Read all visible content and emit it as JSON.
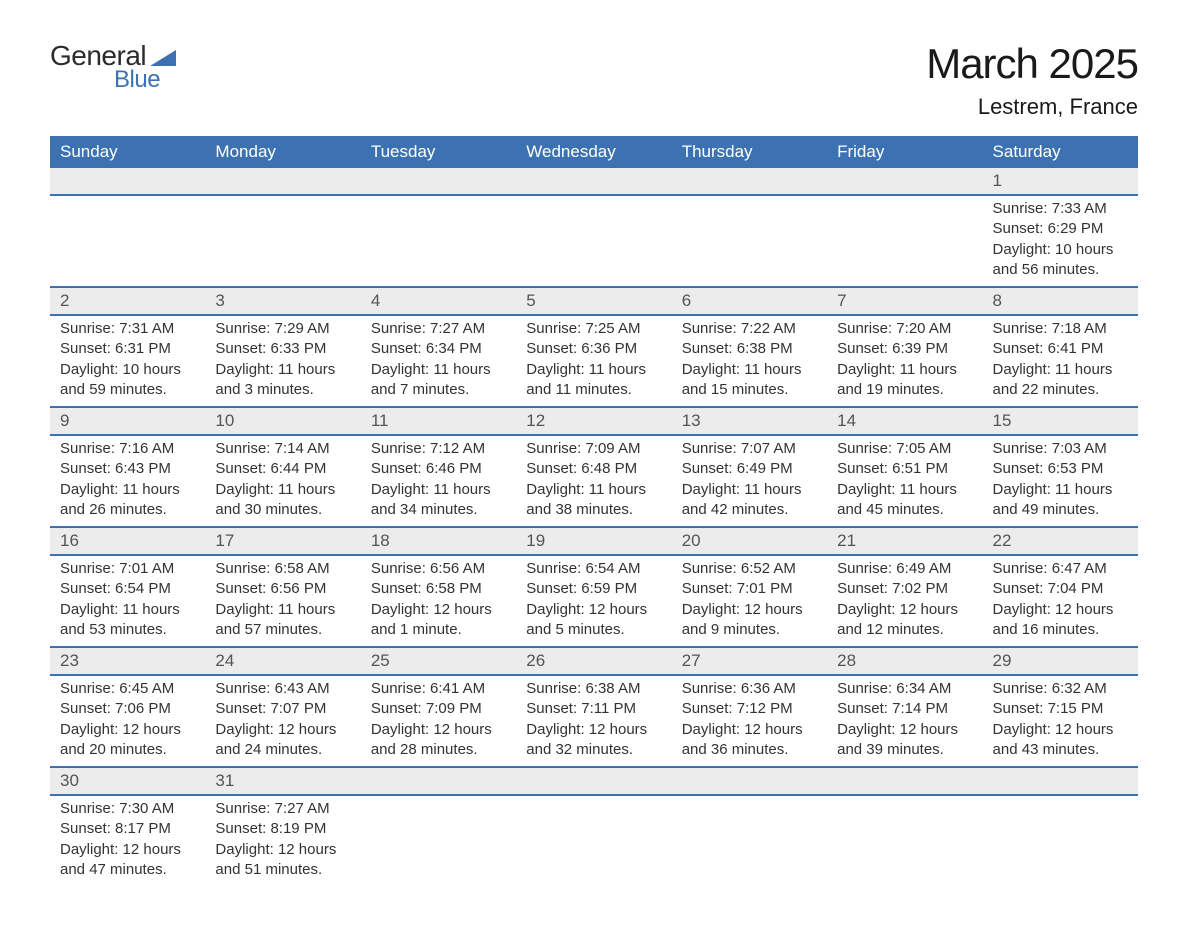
{
  "logo": {
    "general": "General",
    "blue": "Blue"
  },
  "title": {
    "month": "March 2025",
    "location": "Lestrem, France"
  },
  "columns": [
    "Sunday",
    "Monday",
    "Tuesday",
    "Wednesday",
    "Thursday",
    "Friday",
    "Saturday"
  ],
  "colors": {
    "header_bg": "#3c72b1",
    "header_text": "#ffffff",
    "daynum_bg": "#ececec",
    "row_border": "#3c72b1",
    "body_text": "#333333",
    "title_text": "#1a1a1a",
    "logo_blue": "#3c72b1",
    "logo_dark": "#2b2b2b",
    "page_bg": "#ffffff"
  },
  "typography": {
    "title_month_fontsize": 42,
    "title_location_fontsize": 22,
    "header_fontsize": 17,
    "daynum_fontsize": 17,
    "cell_fontsize": 15,
    "font_family": "Arial"
  },
  "weeks": [
    [
      null,
      null,
      null,
      null,
      null,
      null,
      {
        "num": "1",
        "sunrise": "Sunrise: 7:33 AM",
        "sunset": "Sunset: 6:29 PM",
        "daylight": "Daylight: 10 hours and 56 minutes."
      }
    ],
    [
      {
        "num": "2",
        "sunrise": "Sunrise: 7:31 AM",
        "sunset": "Sunset: 6:31 PM",
        "daylight": "Daylight: 10 hours and 59 minutes."
      },
      {
        "num": "3",
        "sunrise": "Sunrise: 7:29 AM",
        "sunset": "Sunset: 6:33 PM",
        "daylight": "Daylight: 11 hours and 3 minutes."
      },
      {
        "num": "4",
        "sunrise": "Sunrise: 7:27 AM",
        "sunset": "Sunset: 6:34 PM",
        "daylight": "Daylight: 11 hours and 7 minutes."
      },
      {
        "num": "5",
        "sunrise": "Sunrise: 7:25 AM",
        "sunset": "Sunset: 6:36 PM",
        "daylight": "Daylight: 11 hours and 11 minutes."
      },
      {
        "num": "6",
        "sunrise": "Sunrise: 7:22 AM",
        "sunset": "Sunset: 6:38 PM",
        "daylight": "Daylight: 11 hours and 15 minutes."
      },
      {
        "num": "7",
        "sunrise": "Sunrise: 7:20 AM",
        "sunset": "Sunset: 6:39 PM",
        "daylight": "Daylight: 11 hours and 19 minutes."
      },
      {
        "num": "8",
        "sunrise": "Sunrise: 7:18 AM",
        "sunset": "Sunset: 6:41 PM",
        "daylight": "Daylight: 11 hours and 22 minutes."
      }
    ],
    [
      {
        "num": "9",
        "sunrise": "Sunrise: 7:16 AM",
        "sunset": "Sunset: 6:43 PM",
        "daylight": "Daylight: 11 hours and 26 minutes."
      },
      {
        "num": "10",
        "sunrise": "Sunrise: 7:14 AM",
        "sunset": "Sunset: 6:44 PM",
        "daylight": "Daylight: 11 hours and 30 minutes."
      },
      {
        "num": "11",
        "sunrise": "Sunrise: 7:12 AM",
        "sunset": "Sunset: 6:46 PM",
        "daylight": "Daylight: 11 hours and 34 minutes."
      },
      {
        "num": "12",
        "sunrise": "Sunrise: 7:09 AM",
        "sunset": "Sunset: 6:48 PM",
        "daylight": "Daylight: 11 hours and 38 minutes."
      },
      {
        "num": "13",
        "sunrise": "Sunrise: 7:07 AM",
        "sunset": "Sunset: 6:49 PM",
        "daylight": "Daylight: 11 hours and 42 minutes."
      },
      {
        "num": "14",
        "sunrise": "Sunrise: 7:05 AM",
        "sunset": "Sunset: 6:51 PM",
        "daylight": "Daylight: 11 hours and 45 minutes."
      },
      {
        "num": "15",
        "sunrise": "Sunrise: 7:03 AM",
        "sunset": "Sunset: 6:53 PM",
        "daylight": "Daylight: 11 hours and 49 minutes."
      }
    ],
    [
      {
        "num": "16",
        "sunrise": "Sunrise: 7:01 AM",
        "sunset": "Sunset: 6:54 PM",
        "daylight": "Daylight: 11 hours and 53 minutes."
      },
      {
        "num": "17",
        "sunrise": "Sunrise: 6:58 AM",
        "sunset": "Sunset: 6:56 PM",
        "daylight": "Daylight: 11 hours and 57 minutes."
      },
      {
        "num": "18",
        "sunrise": "Sunrise: 6:56 AM",
        "sunset": "Sunset: 6:58 PM",
        "daylight": "Daylight: 12 hours and 1 minute."
      },
      {
        "num": "19",
        "sunrise": "Sunrise: 6:54 AM",
        "sunset": "Sunset: 6:59 PM",
        "daylight": "Daylight: 12 hours and 5 minutes."
      },
      {
        "num": "20",
        "sunrise": "Sunrise: 6:52 AM",
        "sunset": "Sunset: 7:01 PM",
        "daylight": "Daylight: 12 hours and 9 minutes."
      },
      {
        "num": "21",
        "sunrise": "Sunrise: 6:49 AM",
        "sunset": "Sunset: 7:02 PM",
        "daylight": "Daylight: 12 hours and 12 minutes."
      },
      {
        "num": "22",
        "sunrise": "Sunrise: 6:47 AM",
        "sunset": "Sunset: 7:04 PM",
        "daylight": "Daylight: 12 hours and 16 minutes."
      }
    ],
    [
      {
        "num": "23",
        "sunrise": "Sunrise: 6:45 AM",
        "sunset": "Sunset: 7:06 PM",
        "daylight": "Daylight: 12 hours and 20 minutes."
      },
      {
        "num": "24",
        "sunrise": "Sunrise: 6:43 AM",
        "sunset": "Sunset: 7:07 PM",
        "daylight": "Daylight: 12 hours and 24 minutes."
      },
      {
        "num": "25",
        "sunrise": "Sunrise: 6:41 AM",
        "sunset": "Sunset: 7:09 PM",
        "daylight": "Daylight: 12 hours and 28 minutes."
      },
      {
        "num": "26",
        "sunrise": "Sunrise: 6:38 AM",
        "sunset": "Sunset: 7:11 PM",
        "daylight": "Daylight: 12 hours and 32 minutes."
      },
      {
        "num": "27",
        "sunrise": "Sunrise: 6:36 AM",
        "sunset": "Sunset: 7:12 PM",
        "daylight": "Daylight: 12 hours and 36 minutes."
      },
      {
        "num": "28",
        "sunrise": "Sunrise: 6:34 AM",
        "sunset": "Sunset: 7:14 PM",
        "daylight": "Daylight: 12 hours and 39 minutes."
      },
      {
        "num": "29",
        "sunrise": "Sunrise: 6:32 AM",
        "sunset": "Sunset: 7:15 PM",
        "daylight": "Daylight: 12 hours and 43 minutes."
      }
    ],
    [
      {
        "num": "30",
        "sunrise": "Sunrise: 7:30 AM",
        "sunset": "Sunset: 8:17 PM",
        "daylight": "Daylight: 12 hours and 47 minutes."
      },
      {
        "num": "31",
        "sunrise": "Sunrise: 7:27 AM",
        "sunset": "Sunset: 8:19 PM",
        "daylight": "Daylight: 12 hours and 51 minutes."
      },
      null,
      null,
      null,
      null,
      null
    ]
  ]
}
